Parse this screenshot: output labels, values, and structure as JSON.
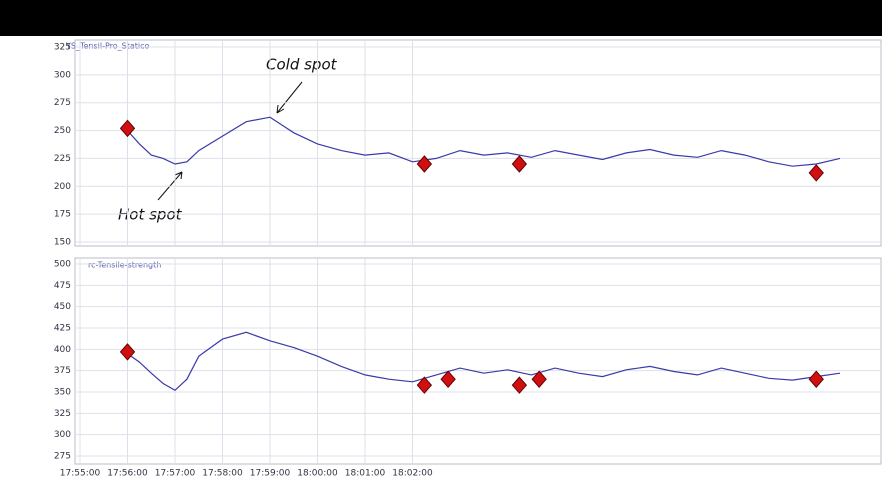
{
  "chart_data": [
    {
      "type": "line",
      "legend": "YS_Tensil-Pro_Statico",
      "ylim": [
        150,
        325
      ],
      "yticks": [
        150,
        175,
        200,
        225,
        250,
        275,
        300,
        325
      ],
      "grid": true,
      "xlim": [
        "17:55:00",
        "18:11:00"
      ],
      "annotations": [
        "Cold spot",
        "Hot spot"
      ],
      "series": [
        {
          "color": "#3a3aa8",
          "x": [
            "17:56:00",
            "17:56:15",
            "17:56:30",
            "17:56:45",
            "17:57:00",
            "17:57:15",
            "17:57:30",
            "17:58:00",
            "17:58:30",
            "17:59:00",
            "17:59:30",
            "18:00:00",
            "18:00:30",
            "18:01:00",
            "18:01:30",
            "18:02:00",
            "18:02:30",
            "18:03:00",
            "18:03:30",
            "18:04:00",
            "18:04:30",
            "18:05:00",
            "18:05:30",
            "18:06:00",
            "18:06:30",
            "18:07:00",
            "18:07:30",
            "18:08:00",
            "18:08:30",
            "18:09:00",
            "18:09:30",
            "18:10:00",
            "18:10:30",
            "18:11:00"
          ],
          "values": [
            250,
            238,
            228,
            225,
            220,
            222,
            232,
            245,
            258,
            262,
            248,
            238,
            232,
            228,
            230,
            222,
            225,
            232,
            228,
            230,
            226,
            232,
            228,
            224,
            230,
            233,
            228,
            226,
            232,
            228,
            222,
            218,
            220,
            225
          ]
        }
      ],
      "markers": {
        "color": "#d01010",
        "x": [
          "17:56:00",
          "18:02:15",
          "18:04:15",
          "18:10:30"
        ],
        "values": [
          252,
          220,
          220,
          212
        ]
      }
    },
    {
      "type": "line",
      "legend": "rc-Tensile-strength",
      "ylim": [
        275,
        500
      ],
      "yticks": [
        275,
        300,
        325,
        350,
        375,
        400,
        425,
        450,
        475,
        500
      ],
      "grid": true,
      "xlim": [
        "17:55:00",
        "18:11:00"
      ],
      "xticks": [
        "17:55:00",
        "17:56:00",
        "17:57:00",
        "17:58:00",
        "17:59:00",
        "18:00:00",
        "18:01:00",
        "18:02:00"
      ],
      "series": [
        {
          "color": "#3a3aa8",
          "x": [
            "17:56:00",
            "17:56:15",
            "17:56:30",
            "17:56:45",
            "17:57:00",
            "17:57:15",
            "17:57:30",
            "17:58:00",
            "17:58:30",
            "17:59:00",
            "17:59:30",
            "18:00:00",
            "18:00:30",
            "18:01:00",
            "18:01:30",
            "18:02:00",
            "18:02:30",
            "18:03:00",
            "18:03:30",
            "18:04:00",
            "18:04:30",
            "18:05:00",
            "18:05:30",
            "18:06:00",
            "18:06:30",
            "18:07:00",
            "18:07:30",
            "18:08:00",
            "18:08:30",
            "18:09:00",
            "18:09:30",
            "18:10:00",
            "18:10:30",
            "18:11:00"
          ],
          "values": [
            395,
            385,
            372,
            360,
            352,
            365,
            392,
            412,
            420,
            410,
            402,
            392,
            380,
            370,
            365,
            362,
            370,
            378,
            372,
            376,
            370,
            378,
            372,
            368,
            376,
            380,
            374,
            370,
            378,
            372,
            366,
            364,
            368,
            372
          ]
        }
      ],
      "markers": {
        "color": "#d01010",
        "x": [
          "17:56:00",
          "18:02:15",
          "18:02:45",
          "18:04:15",
          "18:04:40",
          "18:10:30"
        ],
        "values": [
          397,
          358,
          365,
          358,
          365,
          365
        ]
      }
    }
  ]
}
